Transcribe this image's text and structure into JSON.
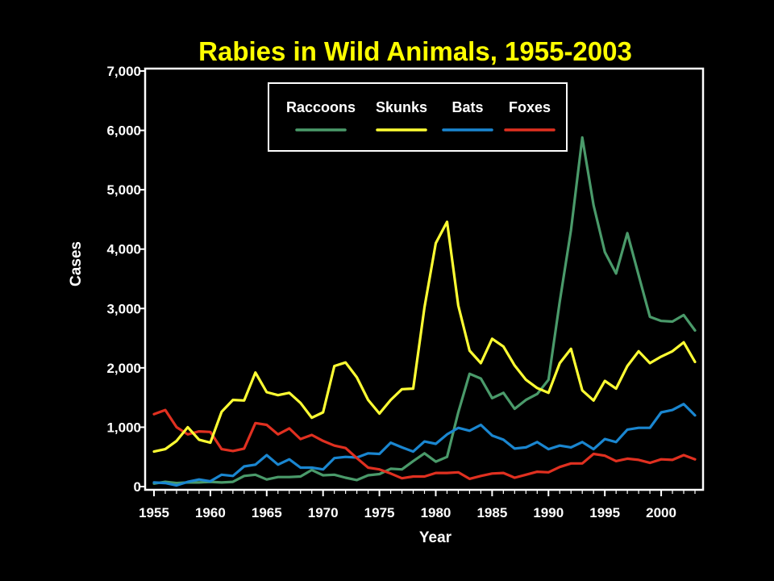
{
  "colors": {
    "background": "#000000",
    "title": "#ffff00",
    "axes": "#ffffff",
    "raccoons": "#4a9a6a",
    "skunks": "#ffff33",
    "bats": "#1a86d0",
    "foxes": "#e03020"
  },
  "chart_data": {
    "type": "line",
    "title": "Rabies in Wild Animals, 1955-2003",
    "xlabel": "Year",
    "ylabel": "Cases",
    "xlim": [
      1955,
      2003
    ],
    "ylim": [
      0,
      7000
    ],
    "grid": false,
    "legend_position": "top-center",
    "x_ticks": [
      1955,
      1960,
      1965,
      1970,
      1975,
      1980,
      1985,
      1990,
      1995,
      2000
    ],
    "x_tick_labels": [
      "1955",
      "1960",
      "1965",
      "1970",
      "1975",
      "1980",
      "1985",
      "1990",
      "1995",
      "2000"
    ],
    "y_ticks": [
      0,
      1000,
      2000,
      3000,
      4000,
      5000,
      6000,
      7000
    ],
    "y_tick_labels": [
      "0",
      "1,000",
      "2,000",
      "3,000",
      "4,000",
      "5,000",
      "6,000",
      "7,000"
    ],
    "x": [
      1955,
      1956,
      1957,
      1958,
      1959,
      1960,
      1961,
      1962,
      1963,
      1964,
      1965,
      1966,
      1967,
      1968,
      1969,
      1970,
      1971,
      1972,
      1973,
      1974,
      1975,
      1976,
      1977,
      1978,
      1979,
      1980,
      1981,
      1982,
      1983,
      1984,
      1985,
      1986,
      1987,
      1988,
      1989,
      1990,
      1991,
      1992,
      1993,
      1994,
      1995,
      1996,
      1997,
      1998,
      1999,
      2000,
      2001,
      2002,
      2003
    ],
    "series": [
      {
        "name": "Raccoons",
        "color": "#4a9a6a",
        "values": [
          50,
          80,
          60,
          70,
          70,
          80,
          70,
          80,
          180,
          200,
          120,
          160,
          160,
          170,
          280,
          190,
          200,
          150,
          110,
          190,
          210,
          300,
          290,
          430,
          560,
          420,
          500,
          1250,
          1900,
          1820,
          1490,
          1580,
          1310,
          1460,
          1560,
          1800,
          3120,
          4320,
          5880,
          4740,
          3950,
          3590,
          4270,
          3560,
          2860,
          2790,
          2780,
          2890,
          2630
        ]
      },
      {
        "name": "Skunks",
        "color": "#ffff33",
        "values": [
          590,
          630,
          770,
          1000,
          790,
          740,
          1260,
          1460,
          1450,
          1920,
          1590,
          1540,
          1580,
          1410,
          1160,
          1250,
          2030,
          2090,
          1840,
          1460,
          1230,
          1460,
          1640,
          1650,
          3020,
          4100,
          4460,
          3050,
          2290,
          2080,
          2490,
          2360,
          2040,
          1800,
          1660,
          1580,
          2080,
          2320,
          1620,
          1450,
          1780,
          1650,
          2030,
          2280,
          2080,
          2190,
          2280,
          2430,
          2100
        ]
      },
      {
        "name": "Bats",
        "color": "#1a86d0",
        "values": [
          70,
          60,
          20,
          80,
          120,
          90,
          200,
          180,
          340,
          370,
          530,
          370,
          460,
          320,
          320,
          290,
          480,
          500,
          490,
          560,
          550,
          740,
          660,
          590,
          760,
          720,
          880,
          990,
          940,
          1040,
          860,
          790,
          640,
          660,
          750,
          630,
          690,
          660,
          750,
          630,
          800,
          750,
          960,
          990,
          990,
          1250,
          1290,
          1390,
          1200
        ]
      },
      {
        "name": "Foxes",
        "color": "#e03020",
        "values": [
          1220,
          1290,
          1000,
          880,
          930,
          920,
          630,
          600,
          640,
          1070,
          1040,
          880,
          980,
          800,
          870,
          770,
          690,
          650,
          480,
          320,
          290,
          220,
          140,
          170,
          170,
          230,
          230,
          240,
          130,
          180,
          220,
          230,
          150,
          200,
          250,
          240,
          330,
          390,
          390,
          550,
          520,
          430,
          470,
          450,
          400,
          460,
          450,
          530,
          460
        ]
      }
    ]
  }
}
